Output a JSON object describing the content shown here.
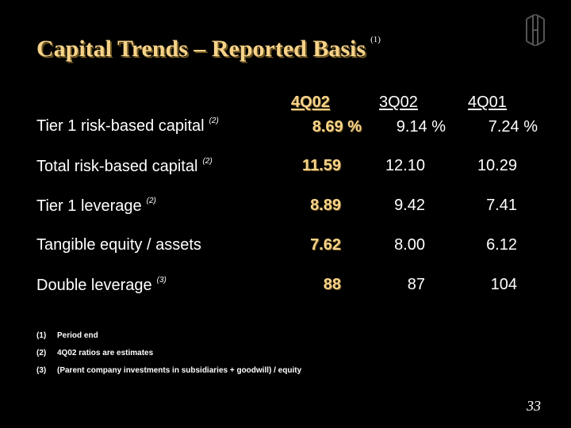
{
  "slide": {
    "title": "Capital Trends – Reported Basis",
    "title_note": "(1)",
    "page_number": "33"
  },
  "columns": [
    "4Q02",
    "3Q02",
    "4Q01"
  ],
  "rows": [
    {
      "label": "Tier 1 risk-based capital",
      "note": "(2)",
      "values": [
        "8.69 %",
        "9.14 %",
        "7.24 %"
      ]
    },
    {
      "label": "Total risk-based capital",
      "note": "(2)",
      "values": [
        "11.59",
        "12.10",
        "10.29"
      ]
    },
    {
      "label": "Tier 1 leverage",
      "note": "(2)",
      "values": [
        "8.89",
        "9.42",
        "7.41"
      ]
    },
    {
      "label": "Tangible equity / assets",
      "note": "",
      "values": [
        "7.62",
        "8.00",
        "6.12"
      ]
    },
    {
      "label": "Double leverage",
      "note": "(3)",
      "values": [
        "88",
        "87",
        "104"
      ]
    }
  ],
  "footnotes": [
    {
      "num": "(1)",
      "text": "Period end"
    },
    {
      "num": "(2)",
      "text": "4Q02 ratios are estimates"
    },
    {
      "num": "(3)",
      "text": "(Parent company investments in subsidiaries + goodwill) / equity"
    }
  ],
  "colors": {
    "background": "#000000",
    "accent_gold": "#f7d38a",
    "text": "#ffffff"
  },
  "icons": {
    "logo": "company-monogram-logo"
  }
}
